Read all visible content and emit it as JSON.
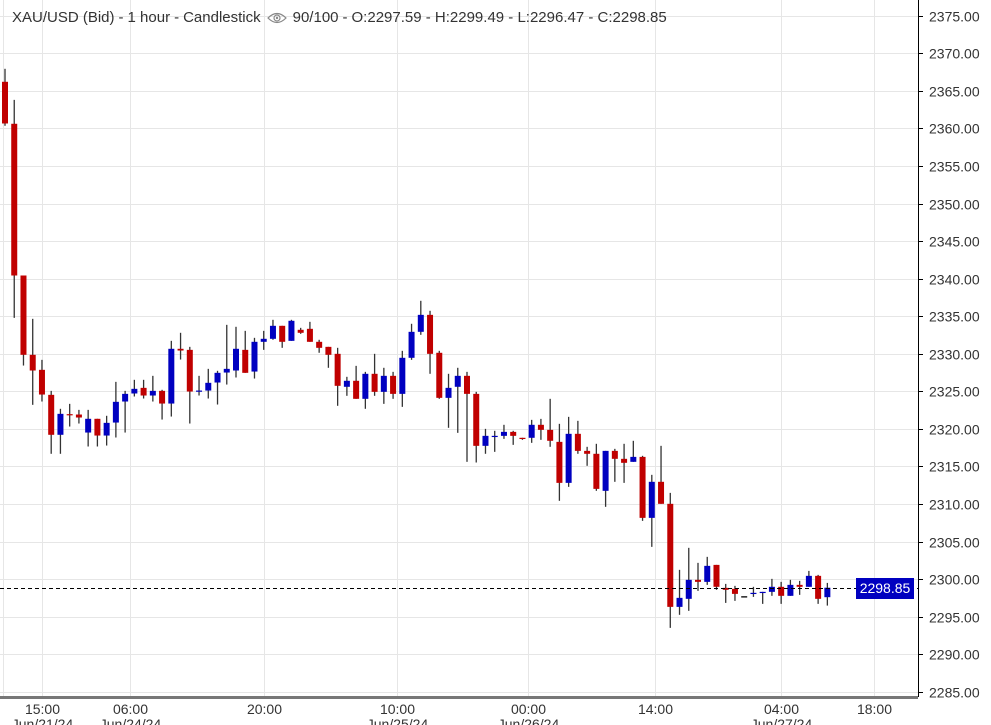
{
  "header": {
    "instrument": "XAU/USD (Bid)",
    "interval": "1 hour",
    "chart_style": "Candlestick",
    "visibility_icon": "eye-icon",
    "count": "90/100",
    "ohlc": "O:2297.59 - H:2299.49 - L:2296.47 - C:2298.85"
  },
  "colors": {
    "up": "#0000c0",
    "down": "#c00000",
    "wick": "#333333",
    "grid": "#e6e6e6",
    "last_price_bg": "#0000c0"
  },
  "last_price_label": "2298.85",
  "chart_data": {
    "type": "candlestick",
    "title": "XAU/USD (Bid) - 1 hour - Candlestick",
    "ylim": [
      2284.3,
      2377.1
    ],
    "y_ticks": [
      "2285.00",
      "2290.00",
      "2295.00",
      "2300.00",
      "2305.00",
      "2310.00",
      "2315.00",
      "2320.00",
      "2325.00",
      "2330.00",
      "2335.00",
      "2340.00",
      "2345.00",
      "2350.00",
      "2355.00",
      "2360.00",
      "2365.00",
      "2370.00",
      "2375.00"
    ],
    "x_ticks": [
      {
        "index": 4,
        "time": "15:00",
        "date": "Jun/21/24"
      },
      {
        "index": 13.5,
        "time": "06:00",
        "date": "Jun/24/24"
      },
      {
        "index": 28,
        "time": "20:00",
        "date": ""
      },
      {
        "index": 42.4,
        "time": "10:00",
        "date": "Jun/25/24"
      },
      {
        "index": 56.6,
        "time": "00:00",
        "date": "Jun/26/24"
      },
      {
        "index": 70.3,
        "time": "14:00",
        "date": ""
      },
      {
        "index": 84,
        "time": "04:00",
        "date": "Jun/27/24"
      },
      {
        "index": 94,
        "time": "18:00",
        "date": ""
      }
    ],
    "last_price": 2298.85,
    "grid": true,
    "ohlc": [
      [
        2366.21,
        2367.94,
        2360.35,
        2360.66
      ],
      [
        2360.62,
        2363.81,
        2334.78,
        2340.42
      ],
      [
        2340.42,
        2340.42,
        2328.43,
        2329.86
      ],
      [
        2329.86,
        2334.65,
        2323.2,
        2327.77
      ],
      [
        2327.86,
        2329.19,
        2323.64,
        2324.57
      ],
      [
        2324.53,
        2325.06,
        2316.68,
        2319.21
      ],
      [
        2319.21,
        2322.67,
        2316.68,
        2322.0
      ],
      [
        2321.96,
        2323.33,
        2320.31,
        2321.83
      ],
      [
        2321.91,
        2322.53,
        2320.71,
        2321.51
      ],
      [
        2319.51,
        2322.53,
        2317.65,
        2321.34
      ],
      [
        2321.34,
        2321.34,
        2317.65,
        2319.11
      ],
      [
        2319.11,
        2321.74,
        2317.78,
        2320.8
      ],
      [
        2320.84,
        2326.26,
        2318.85,
        2323.6
      ],
      [
        2323.64,
        2325.06,
        2319.51,
        2324.66
      ],
      [
        2324.71,
        2326.53,
        2324.31,
        2325.33
      ],
      [
        2325.46,
        2326.53,
        2324.04,
        2324.44
      ],
      [
        2324.44,
        2327.06,
        2323.64,
        2325.06
      ],
      [
        2325.06,
        2325.2,
        2321.24,
        2323.37
      ],
      [
        2323.37,
        2331.72,
        2321.64,
        2330.66
      ],
      [
        2330.66,
        2332.79,
        2329.23,
        2330.43
      ],
      [
        2330.52,
        2330.92,
        2320.71,
        2324.97
      ],
      [
        2324.97,
        2327.06,
        2324.44,
        2325.1
      ],
      [
        2325.1,
        2327.99,
        2324.04,
        2326.13
      ],
      [
        2326.17,
        2327.73,
        2323.24,
        2327.46
      ],
      [
        2327.5,
        2333.85,
        2325.9,
        2327.99
      ],
      [
        2327.77,
        2333.59,
        2326.84,
        2330.66
      ],
      [
        2330.52,
        2333.05,
        2327.46,
        2327.46
      ],
      [
        2327.63,
        2332.12,
        2326.7,
        2331.59
      ],
      [
        2331.59,
        2333.05,
        2330.52,
        2331.99
      ],
      [
        2331.99,
        2334.52,
        2331.86,
        2333.72
      ],
      [
        2333.72,
        2333.72,
        2330.79,
        2331.59
      ],
      [
        2331.72,
        2334.52,
        2331.72,
        2334.39
      ],
      [
        2333.19,
        2333.45,
        2332.65,
        2332.79
      ],
      [
        2333.32,
        2334.25,
        2331.59,
        2331.59
      ],
      [
        2331.59,
        2331.86,
        2330.13,
        2330.79
      ],
      [
        2330.92,
        2330.92,
        2328.13,
        2329.86
      ],
      [
        2329.99,
        2330.79,
        2323.07,
        2325.73
      ],
      [
        2325.6,
        2326.93,
        2324.4,
        2326.4
      ],
      [
        2326.4,
        2328.39,
        2324.0,
        2324.0
      ],
      [
        2324.0,
        2327.59,
        2322.67,
        2327.33
      ],
      [
        2327.33,
        2329.99,
        2324.4,
        2324.93
      ],
      [
        2324.93,
        2328.13,
        2323.33,
        2327.06
      ],
      [
        2327.06,
        2327.59,
        2324.0,
        2324.66
      ],
      [
        2324.66,
        2330.39,
        2322.93,
        2329.46
      ],
      [
        2329.46,
        2333.99,
        2329.19,
        2332.92
      ],
      [
        2332.92,
        2337.05,
        2332.52,
        2335.18
      ],
      [
        2335.18,
        2335.72,
        2327.33,
        2329.99
      ],
      [
        2330.13,
        2330.39,
        2324.0,
        2324.13
      ],
      [
        2324.13,
        2327.33,
        2320.14,
        2325.46
      ],
      [
        2325.6,
        2328.13,
        2319.47,
        2327.06
      ],
      [
        2327.06,
        2327.59,
        2315.61,
        2324.66
      ],
      [
        2324.66,
        2324.93,
        2315.52,
        2317.74
      ],
      [
        2317.74,
        2320.0,
        2316.68,
        2319.07
      ],
      [
        2318.94,
        2319.74,
        2316.94,
        2319.07
      ],
      [
        2319.07,
        2320.54,
        2318.67,
        2319.6
      ],
      [
        2319.6,
        2319.74,
        2317.87,
        2319.07
      ],
      [
        2318.81,
        2318.81,
        2318.54,
        2318.67
      ],
      [
        2318.81,
        2321.2,
        2318.14,
        2320.54
      ],
      [
        2320.54,
        2321.33,
        2318.54,
        2319.87
      ],
      [
        2319.87,
        2324.0,
        2317.61,
        2318.41
      ],
      [
        2318.27,
        2320.67,
        2310.42,
        2312.81
      ],
      [
        2312.81,
        2321.6,
        2312.28,
        2319.34
      ],
      [
        2319.34,
        2321.07,
        2316.68,
        2317.07
      ],
      [
        2317.07,
        2317.61,
        2315.08,
        2316.68
      ],
      [
        2316.68,
        2318.01,
        2311.75,
        2312.01
      ],
      [
        2311.75,
        2317.07,
        2309.62,
        2317.07
      ],
      [
        2317.07,
        2317.34,
        2312.95,
        2316.01
      ],
      [
        2316.01,
        2318.01,
        2312.81,
        2315.48
      ],
      [
        2315.61,
        2318.41,
        2315.61,
        2316.27
      ],
      [
        2316.27,
        2316.41,
        2307.75,
        2308.15
      ],
      [
        2308.15,
        2313.88,
        2304.29,
        2312.95
      ],
      [
        2312.95,
        2317.74,
        2310.02,
        2310.02
      ],
      [
        2310.02,
        2311.48,
        2293.51,
        2296.3
      ],
      [
        2296.3,
        2301.23,
        2295.24,
        2297.5
      ],
      [
        2297.37,
        2304.16,
        2295.77,
        2299.9
      ],
      [
        2299.9,
        2302.16,
        2298.43,
        2299.63
      ],
      [
        2299.63,
        2302.96,
        2299.23,
        2301.76
      ],
      [
        2301.89,
        2301.89,
        2298.57,
        2298.97
      ],
      [
        2298.83,
        2299.36,
        2296.83,
        2298.57
      ],
      [
        2298.7,
        2299.1,
        2297.1,
        2298.03
      ],
      [
        2297.63,
        2297.63,
        2297.63,
        2297.63
      ],
      [
        2298.03,
        2298.97,
        2297.63,
        2298.17
      ],
      [
        2298.17,
        2298.3,
        2296.7,
        2298.3
      ],
      [
        2298.3,
        2300.03,
        2297.77,
        2298.97
      ],
      [
        2298.97,
        2299.63,
        2296.7,
        2297.77
      ],
      [
        2297.77,
        2299.9,
        2297.77,
        2299.23
      ],
      [
        2299.23,
        2299.76,
        2297.9,
        2298.97
      ],
      [
        2298.97,
        2301.09,
        2298.97,
        2300.43
      ],
      [
        2300.43,
        2300.56,
        2296.7,
        2297.37
      ],
      [
        2297.59,
        2299.49,
        2296.47,
        2298.85
      ]
    ]
  }
}
